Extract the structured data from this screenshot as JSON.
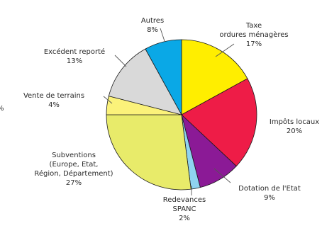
{
  "chart_data": {
    "type": "pie",
    "title": "",
    "slices": [
      {
        "id": "taxe",
        "label_lines": [
          "Taxe",
          "ordures ménagères"
        ],
        "value_label": "17%",
        "value": 17,
        "color": "#ffee00"
      },
      {
        "id": "impots",
        "label_lines": [
          "Impôts locaux"
        ],
        "value_label": "20%",
        "value": 20,
        "color": "#ee1c47"
      },
      {
        "id": "dotation",
        "label_lines": [
          "Dotation de l'Etat"
        ],
        "value_label": "9%",
        "value": 9,
        "color": "#8b1a96"
      },
      {
        "id": "spanc",
        "label_lines": [
          "Redevances",
          "SPANC"
        ],
        "value_label": "2%",
        "value": 2,
        "color": "#8fd3f0"
      },
      {
        "id": "subventions",
        "label_lines": [
          "Subventions",
          "(Europe, Etat,",
          "Région, Département)"
        ],
        "value_label": "27%",
        "value": 27,
        "color": "#e8eb6a"
      },
      {
        "id": "vente",
        "label_lines": [
          "Vente de terrains"
        ],
        "value_label": "4%",
        "value": 4,
        "color": "#fbf27a"
      },
      {
        "id": "excedent",
        "label_lines": [
          "Excédent reporté"
        ],
        "value_label": "13%",
        "value": 13,
        "color": "#d9d9d9"
      },
      {
        "id": "autres",
        "label_lines": [
          "Autres"
        ],
        "value_label": "8%",
        "value": 8,
        "color": "#0aa8e6"
      }
    ],
    "edge_text": "%"
  }
}
